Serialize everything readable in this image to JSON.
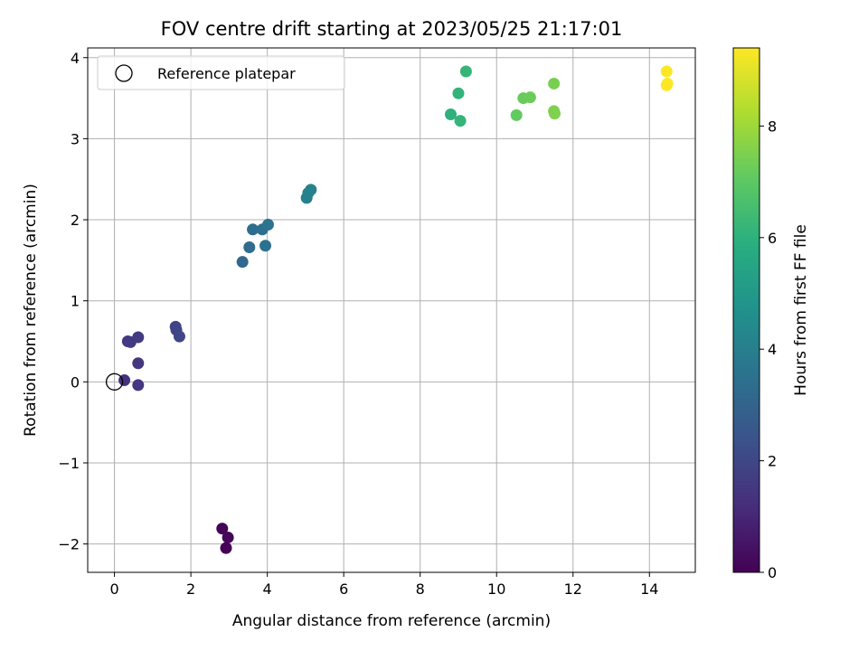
{
  "chart_data": {
    "type": "scatter",
    "title": "FOV centre drift starting at 2023/05/25 21:17:01",
    "xlabel": "Angular distance from reference (arcmin)",
    "ylabel": "Rotation from reference (arcmin)",
    "xlim": [
      -0.7,
      15.2
    ],
    "ylim": [
      -2.35,
      4.12
    ],
    "xticks": [
      0,
      2,
      4,
      6,
      8,
      10,
      12,
      14
    ],
    "yticks": [
      -2,
      -1,
      0,
      1,
      2,
      3,
      4
    ],
    "grid": true,
    "legend": {
      "position": "top-left",
      "entries": [
        "Reference platepar"
      ]
    },
    "reference_point": {
      "x": 0,
      "y": 0,
      "label": "Reference platepar"
    },
    "colorbar": {
      "label": "Hours from first FF file",
      "range": [
        0,
        9.4
      ],
      "ticks": [
        0,
        2,
        4,
        6,
        8
      ],
      "colormap": "viridis"
    },
    "points": [
      {
        "x": 2.82,
        "y": -1.81,
        "c": 0.1
      },
      {
        "x": 2.97,
        "y": -1.92,
        "c": 0.15
      },
      {
        "x": 2.92,
        "y": -2.05,
        "c": 0.05
      },
      {
        "x": 0.26,
        "y": 0.02,
        "c": 1.35
      },
      {
        "x": 0.62,
        "y": -0.04,
        "c": 1.45
      },
      {
        "x": 0.62,
        "y": 0.23,
        "c": 1.5
      },
      {
        "x": 0.35,
        "y": 0.5,
        "c": 1.55
      },
      {
        "x": 0.42,
        "y": 0.49,
        "c": 1.6
      },
      {
        "x": 0.62,
        "y": 0.55,
        "c": 1.65
      },
      {
        "x": 1.6,
        "y": 0.68,
        "c": 1.9
      },
      {
        "x": 1.62,
        "y": 0.64,
        "c": 1.95
      },
      {
        "x": 1.7,
        "y": 0.56,
        "c": 2.0
      },
      {
        "x": 3.35,
        "y": 1.48,
        "c": 3.2
      },
      {
        "x": 3.53,
        "y": 1.66,
        "c": 3.3
      },
      {
        "x": 3.62,
        "y": 1.88,
        "c": 3.35
      },
      {
        "x": 3.87,
        "y": 1.88,
        "c": 3.45
      },
      {
        "x": 3.95,
        "y": 1.68,
        "c": 3.5
      },
      {
        "x": 4.02,
        "y": 1.94,
        "c": 3.55
      },
      {
        "x": 5.03,
        "y": 2.27,
        "c": 4.05
      },
      {
        "x": 5.07,
        "y": 2.33,
        "c": 4.1
      },
      {
        "x": 5.14,
        "y": 2.37,
        "c": 4.15
      },
      {
        "x": 8.8,
        "y": 3.3,
        "c": 6.0
      },
      {
        "x": 9.0,
        "y": 3.56,
        "c": 6.1
      },
      {
        "x": 9.05,
        "y": 3.22,
        "c": 6.15
      },
      {
        "x": 9.2,
        "y": 3.83,
        "c": 6.2
      },
      {
        "x": 10.52,
        "y": 3.29,
        "c": 7.1
      },
      {
        "x": 10.7,
        "y": 3.5,
        "c": 7.2
      },
      {
        "x": 10.88,
        "y": 3.51,
        "c": 7.25
      },
      {
        "x": 11.5,
        "y": 3.68,
        "c": 7.45
      },
      {
        "x": 11.5,
        "y": 3.34,
        "c": 7.5
      },
      {
        "x": 11.52,
        "y": 3.31,
        "c": 7.55
      },
      {
        "x": 14.45,
        "y": 3.83,
        "c": 9.35
      },
      {
        "x": 14.45,
        "y": 3.66,
        "c": 9.4
      },
      {
        "x": 14.47,
        "y": 3.68,
        "c": 9.4
      }
    ]
  }
}
